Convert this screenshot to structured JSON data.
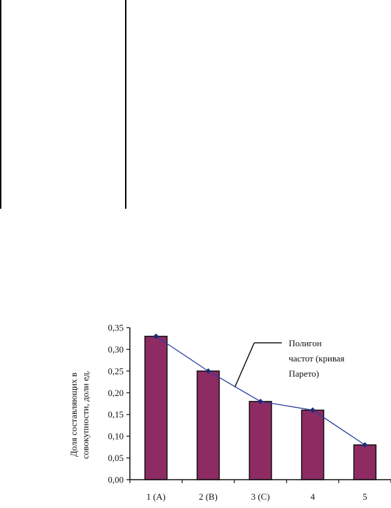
{
  "chart_data": {
    "type": "bar",
    "categories": [
      "1 (A)",
      "2 (B)",
      "3 (C)",
      "4",
      "5"
    ],
    "series": [
      {
        "values": [
          0.33,
          0.25,
          0.18,
          0.16,
          0.08
        ]
      }
    ],
    "line_series": {
      "values": [
        0.33,
        0.25,
        0.18,
        0.16,
        0.08
      ]
    },
    "ylabel_lines": [
      "Доля составляющих в",
      "совокупности, доли ед."
    ],
    "ylim": [
      0,
      0.35
    ],
    "yticks": [
      "0,00",
      "0,05",
      "0,10",
      "0,15",
      "0,20",
      "0,25",
      "0,30",
      "0,35"
    ],
    "annotation_lines": [
      "Полигон",
      "частот (кривая",
      "Парето)"
    ],
    "colors": {
      "bar": "#8e2b63",
      "bar_edge": "#111111",
      "line": "#2a3ea0",
      "marker": "#1e2a78"
    },
    "grid": false
  }
}
